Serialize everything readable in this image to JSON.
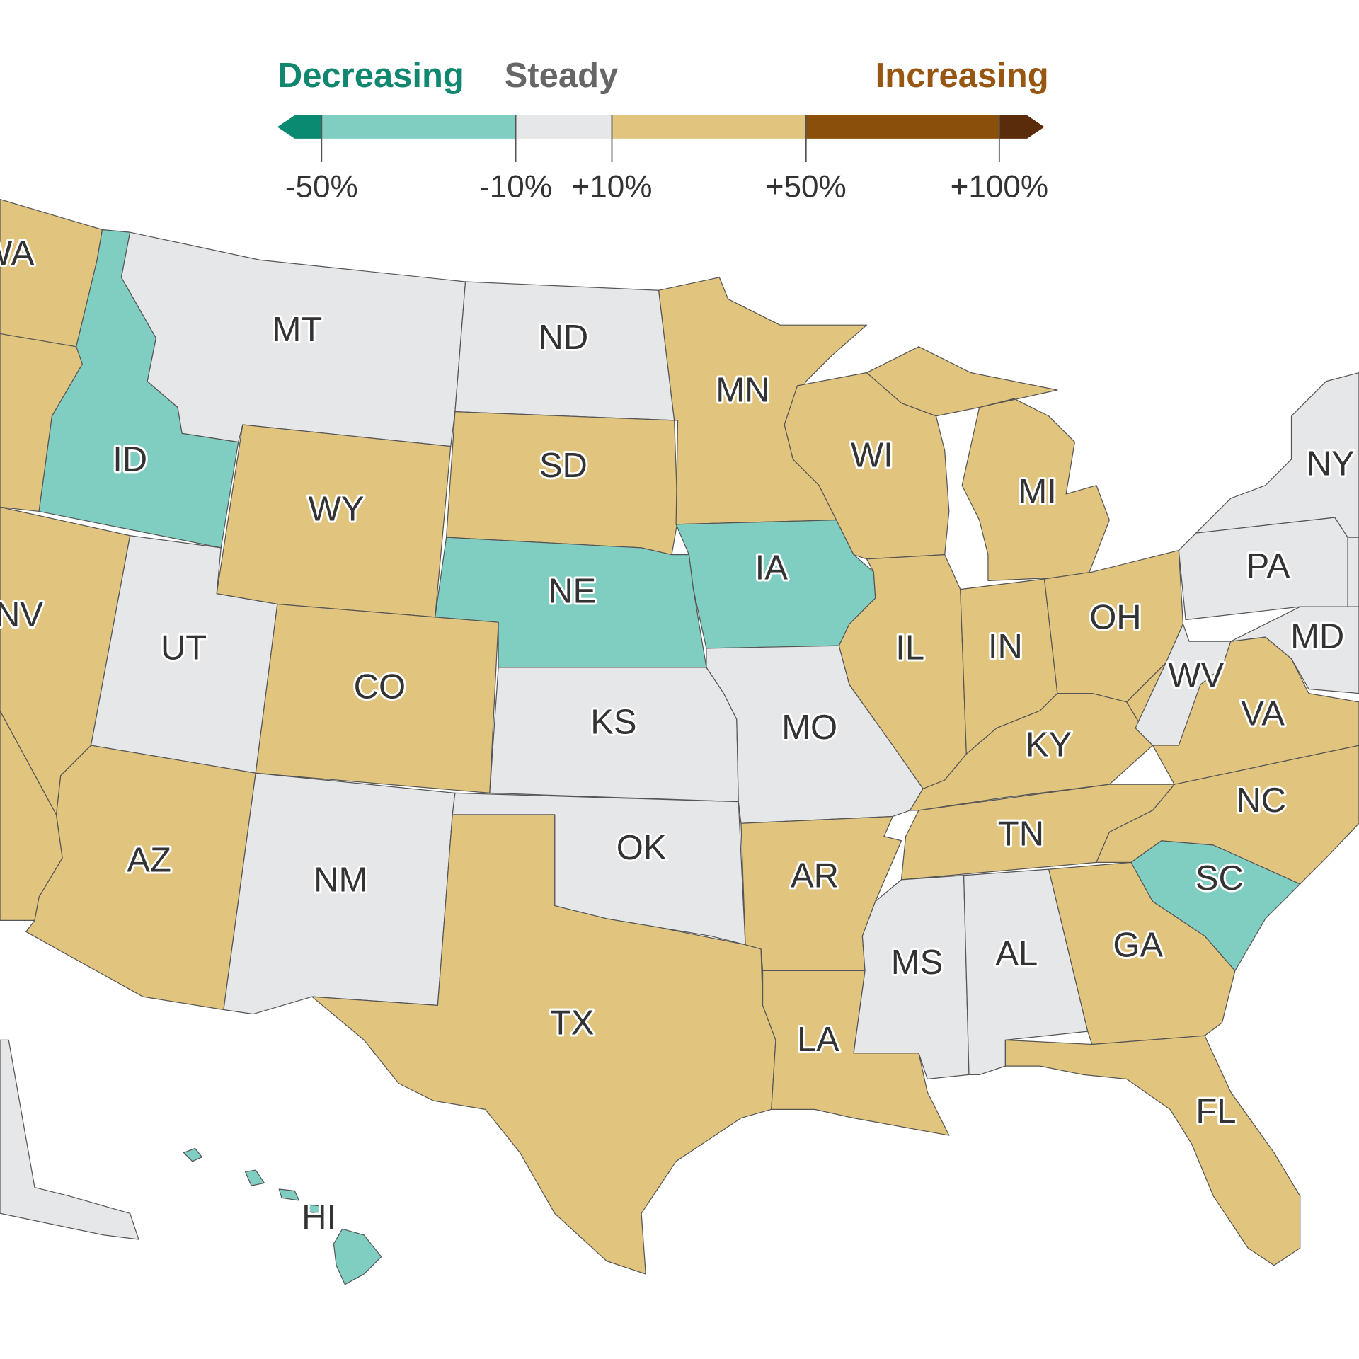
{
  "legend": {
    "headings": [
      {
        "text": "Decreasing",
        "color": "#12876f"
      },
      {
        "text": "Steady",
        "color": "#666666"
      },
      {
        "text": "Increasing",
        "color": "#975611"
      }
    ],
    "bin_colors": [
      "#0b8a72",
      "#80cec2",
      "#e6e7e9",
      "#e1c47e",
      "#8a4f0b",
      "#5b2c0b"
    ],
    "ticks": [
      {
        "value": -50,
        "label": "-50%"
      },
      {
        "value": -10,
        "label": "-10%"
      },
      {
        "value": 10,
        "label": "+10%"
      },
      {
        "value": 50,
        "label": "+50%"
      },
      {
        "value": 100,
        "label": "+100%"
      }
    ]
  },
  "states": [
    {
      "label": "WA",
      "color": "#e1c47e"
    },
    {
      "color": "#e1c47e"
    },
    {
      "color": "#e1c47e"
    },
    {
      "label": "NV",
      "color": "#e1c47e"
    },
    {
      "label": "ID",
      "color": "#80cec2"
    },
    {
      "label": "MT",
      "color": "#e6e7e9"
    },
    {
      "label": "ND",
      "color": "#e6e7e9"
    },
    {
      "label": "SD",
      "color": "#e1c47e"
    },
    {
      "label": "NE",
      "color": "#80cec2"
    },
    {
      "label": "WY",
      "color": "#e1c47e"
    },
    {
      "label": "UT",
      "color": "#e6e7e9"
    },
    {
      "label": "CO",
      "color": "#e1c47e"
    },
    {
      "label": "AZ",
      "color": "#e1c47e"
    },
    {
      "label": "NM",
      "color": "#e6e7e9"
    },
    {
      "label": "KS",
      "color": "#e6e7e9"
    },
    {
      "label": "OK",
      "color": "#e6e7e9"
    },
    {
      "label": "TX",
      "color": "#e1c47e"
    },
    {
      "label": "MN",
      "color": "#e1c47e"
    },
    {
      "label": "IA",
      "color": "#80cec2"
    },
    {
      "label": "MO",
      "color": "#e6e7e9"
    },
    {
      "label": "AR",
      "color": "#e1c47e"
    },
    {
      "label": "LA",
      "color": "#e1c47e"
    },
    {
      "label": "WI",
      "color": "#e1c47e"
    },
    {
      "label": "MI",
      "color": "#e1c47e"
    },
    {
      "label": "IL",
      "color": "#e1c47e"
    },
    {
      "label": "IN",
      "color": "#e1c47e"
    },
    {
      "label": "OH",
      "color": "#e1c47e"
    },
    {
      "label": "KY",
      "color": "#e1c47e"
    },
    {
      "label": "TN",
      "color": "#e1c47e"
    },
    {
      "label": "MS",
      "color": "#e6e7e9"
    },
    {
      "label": "AL",
      "color": "#e6e7e9"
    },
    {
      "label": "GA",
      "color": "#e1c47e"
    },
    {
      "label": "FL",
      "color": "#e1c47e"
    },
    {
      "label": "SC",
      "color": "#80cec2"
    },
    {
      "label": "NC",
      "color": "#e1c47e"
    },
    {
      "label": "VA",
      "color": "#e1c47e"
    },
    {
      "label": "WV",
      "color": "#e6e7e9"
    },
    {
      "label": "MD",
      "color": "#e6e7e9"
    },
    {
      "label": "PA",
      "color": "#e6e7e9"
    },
    {
      "label": "NY",
      "color": "#e6e7e9"
    },
    {
      "color": "#e6e7e9"
    },
    {
      "color": "#e6e7e9"
    },
    {
      "label": "HI",
      "color": "#80cec2"
    }
  ]
}
